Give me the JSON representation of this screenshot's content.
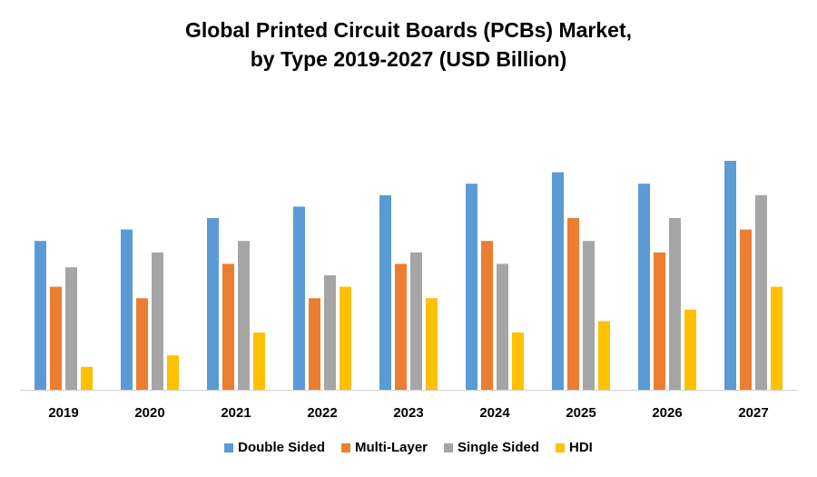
{
  "chart_data": {
    "type": "bar",
    "title_line1": "Global Printed Circuit Boards (PCBs) Market,",
    "title_line2": "by Type 2019-2027 (USD Billion)",
    "xlabel": "",
    "ylabel": "",
    "grid": false,
    "legend_position": "bottom",
    "categories": [
      "2019",
      "2020",
      "2021",
      "2022",
      "2023",
      "2024",
      "2025",
      "2026",
      "2027"
    ],
    "series": [
      {
        "name": "Double Sided",
        "color": "#5B9BD5",
        "values": [
          13,
          14,
          15,
          16,
          17,
          18,
          19,
          18,
          20
        ]
      },
      {
        "name": "Multi-Layer",
        "color": "#ED7D31",
        "values": [
          9,
          8,
          11,
          8,
          11,
          13,
          15,
          12,
          14
        ]
      },
      {
        "name": "Single Sided",
        "color": "#A5A5A5",
        "values": [
          10.7,
          12,
          13,
          10,
          12,
          11,
          13,
          15,
          17
        ]
      },
      {
        "name": "HDI",
        "color": "#FFC000",
        "values": [
          2,
          3,
          5,
          9,
          8,
          5,
          6,
          7,
          9
        ]
      }
    ]
  }
}
